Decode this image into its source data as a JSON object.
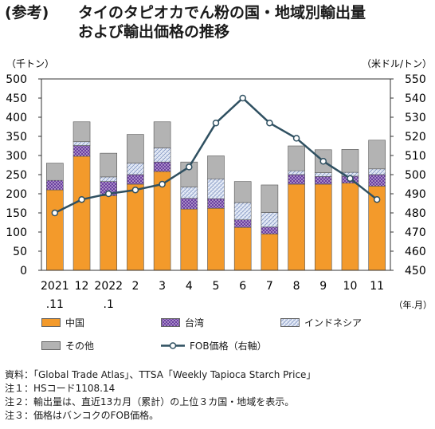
{
  "title": {
    "prefix": "(参考)",
    "line1": "タイのタピオカでん粉の国・地域別輸出量",
    "line2": "および輸出価格の推移"
  },
  "chart_data": {
    "type": "bar",
    "stacked": true,
    "left_unit": "（千トン）",
    "right_unit": "（米ドル/トン）",
    "x_unit": "（年.月）",
    "categories": [
      {
        "top": "2021",
        "bottom": ".11"
      },
      {
        "top": "12",
        "bottom": ""
      },
      {
        "top": "2022",
        "bottom": ".1"
      },
      {
        "top": "2",
        "bottom": ""
      },
      {
        "top": "3",
        "bottom": ""
      },
      {
        "top": "4",
        "bottom": ""
      },
      {
        "top": "5",
        "bottom": ""
      },
      {
        "top": "6",
        "bottom": ""
      },
      {
        "top": "7",
        "bottom": ""
      },
      {
        "top": "8",
        "bottom": ""
      },
      {
        "top": "9",
        "bottom": ""
      },
      {
        "top": "10",
        "bottom": ""
      },
      {
        "top": "11",
        "bottom": ""
      }
    ],
    "left_axis": {
      "min": 0,
      "max": 500,
      "step": 50,
      "ticks": [
        "0",
        "50",
        "100",
        "150",
        "200",
        "250",
        "300",
        "350",
        "400",
        "450",
        "500"
      ]
    },
    "right_axis": {
      "min": 450,
      "max": 550,
      "step": 10,
      "ticks": [
        "450",
        "460",
        "470",
        "480",
        "490",
        "500",
        "510",
        "520",
        "530",
        "540",
        "550"
      ]
    },
    "series": [
      {
        "name": "中国",
        "color": "#f39a2b",
        "pattern": "solid",
        "values": [
          210,
          298,
          195,
          225,
          258,
          160,
          162,
          112,
          95,
          225,
          225,
          228,
          220
        ]
      },
      {
        "name": "台湾",
        "color": "#6b3fa0",
        "pattern": "dots",
        "values": [
          25,
          28,
          37,
          25,
          25,
          28,
          25,
          20,
          18,
          25,
          20,
          18,
          30
        ]
      },
      {
        "name": "インドネシア",
        "color": "#c9d6ee",
        "pattern": "hatch",
        "values": [
          0,
          10,
          12,
          30,
          37,
          30,
          52,
          45,
          38,
          10,
          10,
          10,
          15
        ]
      },
      {
        "name": "その他",
        "color": "#b3b3b3",
        "pattern": "solid",
        "values": [
          45,
          52,
          62,
          75,
          68,
          65,
          60,
          55,
          72,
          65,
          60,
          60,
          75
        ]
      }
    ],
    "line_series": {
      "name": "FOB価格（右軸）",
      "color": "#2f5061",
      "values": [
        480,
        487,
        490,
        492,
        495,
        504,
        527,
        540,
        527,
        519,
        507,
        498,
        487
      ]
    },
    "grid": false
  },
  "notes": [
    "資料：「Global Trade Atlas」、TTSA「Weekly Tapioca Starch Price」",
    "注１：HSコード1108.14",
    "注２：輸出量は、直近13カ月（累計）の上位３カ国・地域を表示。",
    "注３：価格はバンコクのFOB価格。"
  ]
}
